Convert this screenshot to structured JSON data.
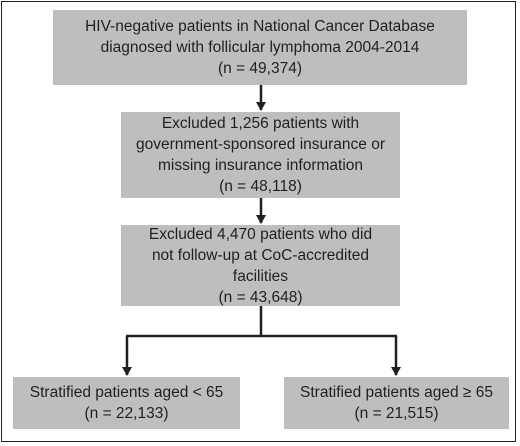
{
  "colors": {
    "box_fill": "#bcbec0",
    "line": "#231f20",
    "text": "#231f20",
    "background": "#ffffff"
  },
  "boxes": [
    {
      "lines": [
        "HIV-negative patients in National Cancer Database",
        "diagnosed with follicular lymphoma 2004-2014",
        "(n = 49,374)"
      ]
    },
    {
      "lines": [
        "Excluded 1,256 patients with",
        "government-sponsored insurance or",
        "missing insurance information",
        "(n = 48,118)"
      ]
    },
    {
      "lines": [
        "Excluded 4,470 patients who did",
        "not follow-up at CoC-accredited",
        "facilities",
        "(n = 43,648)"
      ]
    },
    {
      "lines": [
        "Stratified patients aged < 65",
        "(n = 22,133)"
      ]
    },
    {
      "lines": [
        "Stratified patients aged ≥ 65",
        "(n = 21,515)"
      ]
    }
  ]
}
